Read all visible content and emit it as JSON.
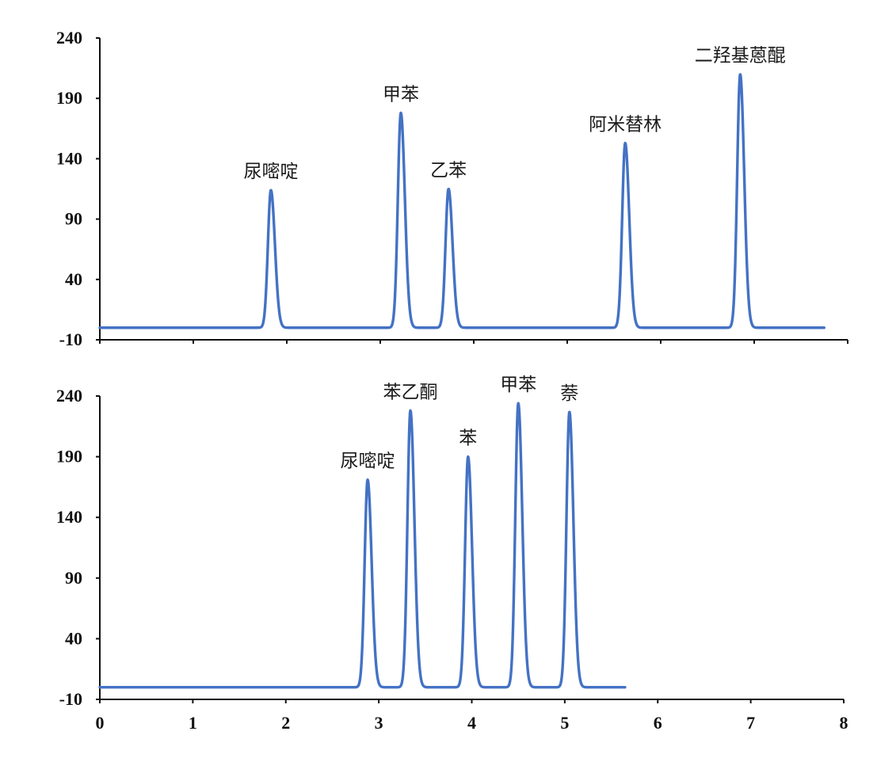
{
  "chart_data": [
    {
      "type": "line",
      "title": "",
      "xlabel": "",
      "ylabel": "",
      "xlim": [
        0,
        8
      ],
      "ylim": [
        -10,
        240
      ],
      "y_ticks": [
        "240",
        "190",
        "140",
        "90",
        "40",
        "-10"
      ],
      "x_tick_labels_visible": false,
      "line_color": "#4472C4",
      "baseline": 0,
      "peaks": [
        {
          "label": "尿嘧啶",
          "x": 1.83,
          "y": 114
        },
        {
          "label": "甲苯",
          "x": 3.22,
          "y": 178
        },
        {
          "label": "乙苯",
          "x": 3.73,
          "y": 115
        },
        {
          "label": "阿米替林",
          "x": 5.62,
          "y": 153
        },
        {
          "label": "二羟基蒽醌",
          "x": 6.85,
          "y": 210
        }
      ],
      "x_end": 7.75
    },
    {
      "type": "line",
      "title": "",
      "xlabel": "",
      "ylabel": "",
      "xlim": [
        0,
        8
      ],
      "ylim": [
        -10,
        240
      ],
      "y_ticks": [
        "240",
        "190",
        "140",
        "90",
        "40",
        "-10"
      ],
      "x_ticks": [
        "0",
        "1",
        "2",
        "3",
        "4",
        "5",
        "6",
        "7",
        "8"
      ],
      "line_color": "#4472C4",
      "baseline": 0,
      "peaks": [
        {
          "label": "尿嘧啶",
          "x": 2.88,
          "y": 171
        },
        {
          "label": "苯乙酮",
          "x": 3.34,
          "y": 228
        },
        {
          "label": "苯",
          "x": 3.96,
          "y": 190
        },
        {
          "label": "甲苯",
          "x": 4.5,
          "y": 234
        },
        {
          "label": "萘",
          "x": 5.05,
          "y": 227
        }
      ],
      "x_end": 5.65
    }
  ]
}
